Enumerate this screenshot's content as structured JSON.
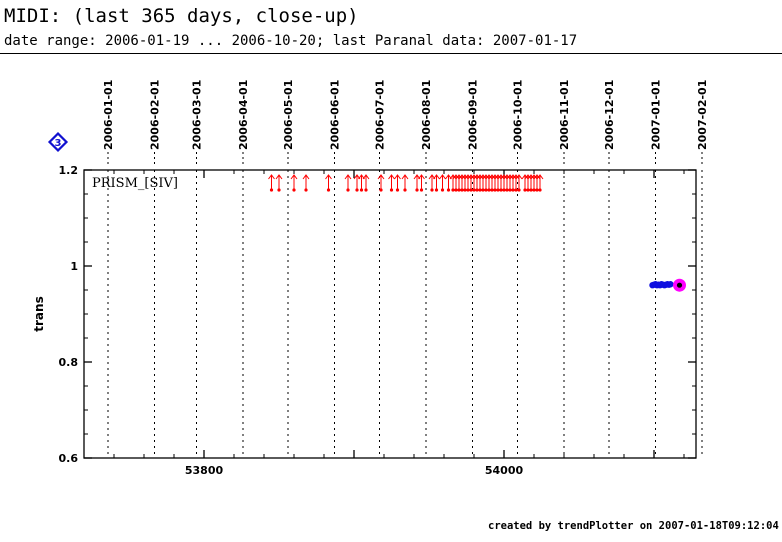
{
  "header": {
    "title": "MIDI: (last 365 days, close-up)",
    "subtitle": "date range: 2006-01-19 ... 2006-10-20; last Paranal data: 2007-01-17"
  },
  "footer": {
    "text": "created by trendPlotter on 2007-01-18T09:12:04"
  },
  "badge": {
    "text": "3",
    "color": "#1010d0"
  },
  "chart_data": {
    "type": "scatter",
    "ylabel": "trans",
    "xlabel": "",
    "panel_label": "PRISM_[SIV]",
    "xlim": [
      53720,
      54128
    ],
    "ylim": [
      0.6,
      1.2
    ],
    "x_ticks": [
      53800,
      54000
    ],
    "y_ticks": [
      "0.6",
      "0.8",
      "1",
      "1.2"
    ],
    "date_ticks": [
      {
        "label": "2006-01-01",
        "mjd": 53736
      },
      {
        "label": "2006-02-01",
        "mjd": 53767
      },
      {
        "label": "2006-03-01",
        "mjd": 53795
      },
      {
        "label": "2006-04-01",
        "mjd": 53826
      },
      {
        "label": "2006-05-01",
        "mjd": 53856
      },
      {
        "label": "2006-06-01",
        "mjd": 53887
      },
      {
        "label": "2006-07-01",
        "mjd": 53917
      },
      {
        "label": "2006-08-01",
        "mjd": 53948
      },
      {
        "label": "2006-09-01",
        "mjd": 53979
      },
      {
        "label": "2006-10-01",
        "mjd": 54009
      },
      {
        "label": "2006-11-01",
        "mjd": 54040
      },
      {
        "label": "2006-12-01",
        "mjd": 54070
      },
      {
        "label": "2007-01-01",
        "mjd": 54101
      },
      {
        "label": "2007-02-01",
        "mjd": 54132
      }
    ],
    "series": [
      {
        "marker": "out-of-range-arrow",
        "color": "#ff0000",
        "x": [
          53845,
          53850,
          53860,
          53868,
          53883,
          53896,
          53902,
          53905,
          53908,
          53918,
          53925,
          53929,
          53934,
          53942,
          53945,
          53952,
          53955,
          53959,
          53963,
          53966,
          53968,
          53970,
          53972,
          53974,
          53976,
          53978,
          53980,
          53982,
          53984,
          53986,
          53988,
          53990,
          53992,
          53994,
          53996,
          53998,
          54000,
          54002,
          54004,
          54006,
          54008,
          54010,
          54014,
          54016,
          54018,
          54020,
          54022,
          54024
        ],
        "y": 1.2
      },
      {
        "marker": "dot",
        "color": "#1010e0",
        "x": [
          54099,
          54100,
          54101,
          54102,
          54103,
          54104,
          54105,
          54106,
          54107,
          54108,
          54109,
          54110,
          54111
        ],
        "y": [
          0.96,
          0.961,
          0.962,
          0.96,
          0.961,
          0.96,
          0.962,
          0.961,
          0.96,
          0.961,
          0.962,
          0.961,
          0.962
        ]
      },
      {
        "marker": "highlight",
        "color": "#ff00ff",
        "x": [
          54117
        ],
        "y": [
          0.96
        ]
      }
    ]
  }
}
